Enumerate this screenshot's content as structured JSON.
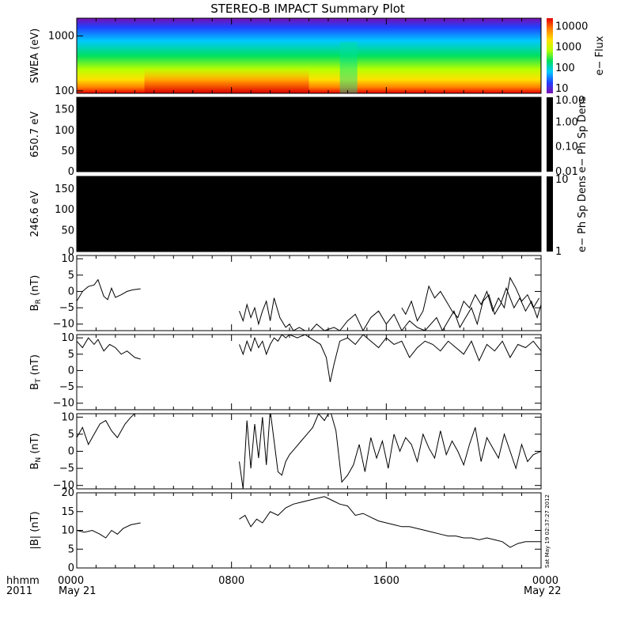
{
  "title": "STEREO-B IMPACT Summary Plot",
  "footer": {
    "hhmm": "hhmm",
    "year": "2011",
    "date_start": "May 21",
    "date_end": "May 22",
    "stamp": "Sat May 19 02:37:27 2012"
  },
  "chart_data": [
    {
      "type": "heatmap",
      "panel": "swea",
      "ylabel": "SWEA (eV)",
      "y_scale": "log",
      "yticks": [
        "1000",
        "100"
      ],
      "colorbar_label": "e− Flux",
      "colorbar_ticks": [
        "10000",
        "1000",
        "100",
        "10"
      ],
      "colorbar_scale": "log",
      "colorbar_range": [
        6,
        25000
      ],
      "palette": [
        "#7a0fb0",
        "#2040ff",
        "#00c8ff",
        "#00e060",
        "#b8ff00",
        "#ffe000",
        "#ff8000",
        "#e80000"
      ]
    },
    {
      "type": "heatmap",
      "panel": "pad650",
      "ylabel": "650.7 eV",
      "ylim": [
        0,
        180
      ],
      "yticks": [
        "150",
        "100",
        "50",
        "0"
      ],
      "fill": "#000000",
      "colorbar_label": "e− Ph Sp Dens",
      "colorbar_ticks": [
        "10.00",
        "1.00",
        "0.10",
        "0.01"
      ]
    },
    {
      "type": "heatmap",
      "panel": "pad246",
      "ylabel": "246.6 eV",
      "ylim": [
        0,
        180
      ],
      "yticks": [
        "150",
        "100",
        "50",
        "0"
      ],
      "fill": "#000000",
      "colorbar_label": "e− Ph Sp Dens",
      "colorbar_ticks": [
        "10",
        "1"
      ]
    },
    {
      "type": "line",
      "panel": "br",
      "ylabel_main": "B",
      "ylabel_sub": "R",
      "ylabel_unit": " (nT)",
      "ylim": [
        -12,
        11
      ],
      "yticks": [
        "10",
        "5",
        "0",
        "−5",
        "−10"
      ],
      "x_unit": "hours since 2011-05-21 00:00",
      "segments": [
        {
          "x": [
            0,
            0.3,
            0.6,
            0.9,
            1.1,
            1.4,
            1.6,
            1.8,
            2.0,
            2.3,
            2.6,
            2.9,
            3.3
          ],
          "y": [
            -3,
            0,
            1.5,
            2,
            3.6,
            -1.5,
            -2.5,
            1,
            -1.8,
            -1,
            0,
            0.5,
            0.8
          ]
        },
        {
          "x": [
            8.4,
            8.6,
            8.8,
            9.0,
            9.2,
            9.4,
            9.6,
            9.8,
            10.0,
            10.2,
            10.5,
            10.8,
            11.0,
            11.2,
            11.5,
            11.8,
            12.1,
            12.4,
            12.8,
            13.3,
            13.6,
            14.0,
            14.4,
            14.8,
            15.2,
            15.6,
            16.0,
            16.4,
            16.8,
            17.2,
            17.6,
            18.0,
            18.3,
            18.6,
            18.9,
            19.2,
            19.5,
            19.8,
            20.1,
            20.4,
            20.7,
            21.0,
            21.3,
            21.6,
            21.9,
            22.2,
            22.6,
            22.9,
            23.2,
            23.5,
            23.8,
            24.0
          ],
          "y": [
            -6,
            -9,
            -4,
            -8,
            -5,
            -10,
            -6,
            -3,
            -9,
            -2,
            -8,
            -11,
            -10,
            -12,
            -11,
            -12,
            -12,
            -10,
            -12,
            -11,
            -12,
            -9,
            -7,
            -12,
            -8,
            -6,
            -10,
            -7,
            -12,
            -9,
            -11,
            -12,
            -10,
            -8,
            -12,
            -9,
            -6,
            -11,
            -8,
            -5,
            -10,
            -3,
            -1,
            -7,
            -4,
            1,
            -5,
            -2,
            -6,
            -3,
            -8,
            -4
          ]
        },
        {
          "x": [
            16.8,
            17.0,
            17.3,
            17.6,
            17.9,
            18.2,
            18.5,
            18.8,
            19.1,
            19.4,
            19.7,
            20.0,
            20.3,
            20.6,
            20.9,
            21.2,
            21.5,
            21.8,
            22.1,
            22.4,
            22.7,
            23.0,
            23.3,
            23.6,
            23.9
          ],
          "y": [
            -5,
            -7,
            -3,
            -9,
            -6,
            1.6,
            -2,
            0,
            -3,
            -6,
            -8,
            -3,
            -5,
            -1,
            -4,
            0,
            -6,
            -2,
            -5,
            4.2,
            1,
            -3,
            -1,
            -5,
            -2
          ]
        }
      ]
    },
    {
      "type": "line",
      "panel": "bt",
      "ylabel_main": "B",
      "ylabel_sub": "T",
      "ylabel_unit": " (nT)",
      "ylim": [
        -12,
        11
      ],
      "yticks": [
        "10",
        "5",
        "0",
        "−5",
        "−10"
      ],
      "x_unit": "hours since 2011-05-21 00:00",
      "segments": [
        {
          "x": [
            0,
            0.3,
            0.6,
            0.9,
            1.1,
            1.4,
            1.7,
            2.0,
            2.3,
            2.6,
            3.0,
            3.3
          ],
          "y": [
            9,
            7,
            10,
            8,
            9.5,
            6,
            8,
            7,
            5,
            6,
            4,
            3.5
          ]
        },
        {
          "x": [
            8.4,
            8.6,
            8.8,
            9.0,
            9.2,
            9.4,
            9.6,
            9.8,
            10.0,
            10.2,
            10.4,
            10.6,
            10.8,
            11.0,
            11.4,
            11.8,
            12.2,
            12.6,
            12.9,
            13.1,
            13.3,
            13.6,
            14.0,
            14.4,
            14.8,
            15.2,
            15.6,
            16.0,
            16.4,
            16.8,
            17.2,
            17.6,
            18.0,
            18.4,
            18.8,
            19.2,
            19.6,
            20.0,
            20.4,
            20.8,
            21.2,
            21.6,
            22.0,
            22.4,
            22.8,
            23.2,
            23.6,
            24.0
          ],
          "y": [
            8,
            5,
            9,
            6,
            10,
            7,
            9,
            5,
            8,
            10,
            9,
            11,
            10,
            11,
            10,
            11,
            9.5,
            8,
            4,
            -3.5,
            2,
            9,
            10,
            8,
            11,
            9,
            7,
            10,
            8,
            9,
            4,
            7,
            9,
            8,
            6,
            9,
            7,
            5,
            9,
            3,
            8,
            6,
            9,
            4,
            8,
            7,
            9,
            6
          ]
        }
      ]
    },
    {
      "type": "line",
      "panel": "bn",
      "ylabel_main": "B",
      "ylabel_sub": "N",
      "ylabel_unit": " (nT)",
      "ylim": [
        -11,
        11
      ],
      "yticks": [
        "10",
        "5",
        "0",
        "−5",
        "−10"
      ],
      "x_unit": "hours since 2011-05-21 00:00",
      "segments": [
        {
          "x": [
            0,
            0.3,
            0.6,
            0.9,
            1.2,
            1.5,
            1.8,
            2.1,
            2.5,
            2.8,
            3.0
          ],
          "y": [
            4,
            7,
            2,
            5,
            8,
            9,
            6,
            4,
            8,
            10,
            11
          ]
        },
        {
          "x": [
            8.4,
            8.6,
            8.8,
            9.0,
            9.2,
            9.4,
            9.6,
            9.8,
            10.0,
            10.2,
            10.4,
            10.6,
            10.8,
            11.0,
            11.3,
            11.6,
            11.9,
            12.2,
            12.5,
            12.8,
            13.1,
            13.4,
            13.7,
            14.0,
            14.3,
            14.6,
            14.9,
            15.2,
            15.5,
            15.8,
            16.1,
            16.4,
            16.7,
            17.0,
            17.3,
            17.6,
            17.9,
            18.2,
            18.5,
            18.8,
            19.1,
            19.4,
            19.7,
            20.0,
            20.3,
            20.6,
            20.9,
            21.2,
            21.5,
            21.8,
            22.1,
            22.4,
            22.7,
            23.0,
            23.3,
            23.6,
            24.0
          ],
          "y": [
            -3,
            -11,
            9,
            -5,
            8,
            -2,
            10,
            -4,
            12,
            3,
            -6,
            -7,
            -3,
            -1,
            1,
            3,
            5,
            7,
            11,
            9,
            12,
            6,
            -9,
            -7,
            -4,
            2,
            -6,
            4,
            -2,
            3,
            -5,
            5,
            0,
            4,
            2,
            -3,
            5,
            1,
            -2,
            6,
            -1,
            3,
            0,
            -4,
            2,
            7,
            -3,
            4,
            1,
            -2,
            5,
            0,
            -5,
            2,
            -3,
            -1,
            0
          ]
        }
      ]
    },
    {
      "type": "line",
      "panel": "bmag",
      "ylabel_main": "|B| (nT)",
      "ylim": [
        0,
        20
      ],
      "yticks": [
        "20",
        "15",
        "10",
        "5",
        "0"
      ],
      "x_unit": "hours since 2011-05-21 00:00",
      "segments": [
        {
          "x": [
            0,
            0.4,
            0.8,
            1.2,
            1.5,
            1.8,
            2.1,
            2.4,
            2.8,
            3.3
          ],
          "y": [
            10,
            9.5,
            10,
            9,
            8,
            10,
            9,
            10.5,
            11.5,
            12
          ]
        },
        {
          "x": [
            8.4,
            8.7,
            9.0,
            9.3,
            9.6,
            10.0,
            10.4,
            10.8,
            11.2,
            11.6,
            12.0,
            12.4,
            12.8,
            13.2,
            13.6,
            14.0,
            14.4,
            14.8,
            15.2,
            15.6,
            16.0,
            16.4,
            16.8,
            17.2,
            17.6,
            18.0,
            18.4,
            18.8,
            19.2,
            19.6,
            20.0,
            20.4,
            20.8,
            21.2,
            21.6,
            22.0,
            22.4,
            22.8,
            23.2,
            23.6,
            24.0
          ],
          "y": [
            13,
            14,
            11,
            13,
            12,
            15,
            14,
            16,
            17,
            17.5,
            18,
            18.5,
            19,
            18,
            17,
            16.5,
            14,
            14.5,
            13.5,
            12.5,
            12,
            11.5,
            11,
            11,
            10.5,
            10,
            9.5,
            9,
            8.5,
            8.5,
            8,
            8,
            7.5,
            8,
            7.5,
            7,
            5.5,
            6.5,
            7,
            7,
            7
          ]
        }
      ]
    }
  ],
  "xaxis": {
    "xlim": [
      0,
      24
    ],
    "tick_hours": [
      0,
      8,
      16,
      24
    ],
    "tick_labels": [
      "0000",
      "0800",
      "1600",
      "0000"
    ],
    "minor_step_hours": 1
  }
}
